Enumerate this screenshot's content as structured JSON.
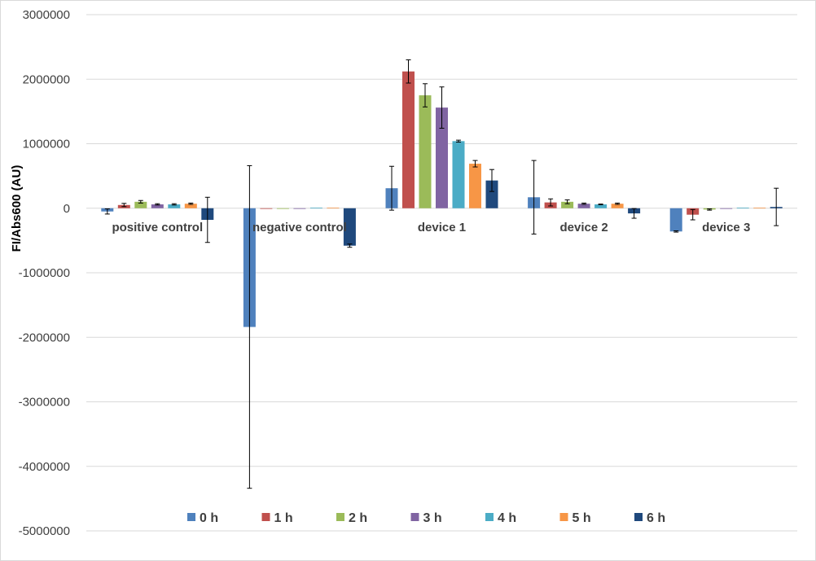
{
  "chart_data": {
    "type": "bar",
    "ylabel": "FI/Abs600 (AU)",
    "xlabel": "",
    "ylim": [
      -5000000,
      3000000
    ],
    "yticks": [
      "3000000",
      "2000000",
      "1000000",
      "0",
      "-1000000",
      "-2000000",
      "-3000000",
      "-4000000",
      "-5000000"
    ],
    "grid": true,
    "legend_position": "bottom",
    "categories": [
      "positive control",
      "negative control",
      "device 1",
      "device 2",
      "device 3"
    ],
    "series": [
      {
        "name": "0 h",
        "color": "#4F81BD",
        "values": [
          -50000,
          -1840000,
          310000,
          170000,
          -360000
        ],
        "errors": [
          40000,
          2500000,
          340000,
          570000,
          10000
        ]
      },
      {
        "name": "1 h",
        "color": "#C0504D",
        "values": [
          50000,
          0,
          2120000,
          90000,
          -100000
        ],
        "errors": [
          25000,
          0,
          180000,
          55000,
          80000
        ]
      },
      {
        "name": "2 h",
        "color": "#9BBB59",
        "values": [
          100000,
          0,
          1750000,
          100000,
          -20000
        ],
        "errors": [
          20000,
          0,
          180000,
          30000,
          10000
        ]
      },
      {
        "name": "3 h",
        "color": "#8064A2",
        "values": [
          60000,
          0,
          1560000,
          70000,
          0
        ],
        "errors": [
          10000,
          0,
          320000,
          10000,
          0
        ]
      },
      {
        "name": "4 h",
        "color": "#4BACC6",
        "values": [
          60000,
          10000,
          1040000,
          60000,
          10000
        ],
        "errors": [
          10000,
          0,
          15000,
          5000,
          0
        ]
      },
      {
        "name": "5 h",
        "color": "#F79646",
        "values": [
          70000,
          10000,
          690000,
          70000,
          10000
        ],
        "errors": [
          10000,
          0,
          50000,
          10000,
          0
        ]
      },
      {
        "name": "6 h",
        "color": "#1F497D",
        "values": [
          -180000,
          -580000,
          430000,
          -80000,
          20000
        ],
        "errors": [
          350000,
          25000,
          170000,
          75000,
          290000
        ]
      }
    ]
  }
}
